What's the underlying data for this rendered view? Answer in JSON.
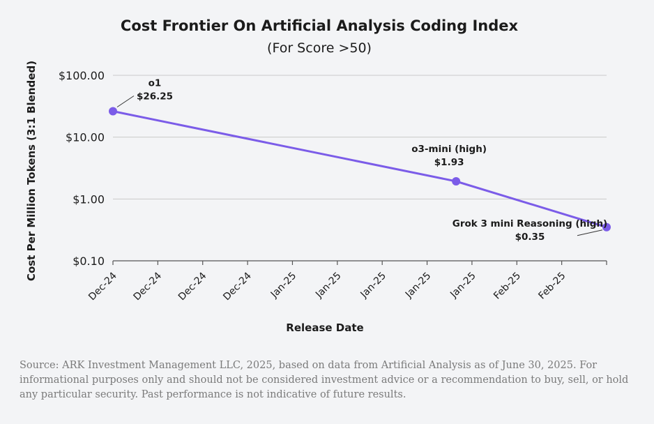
{
  "chart_data": {
    "type": "line",
    "title": "Cost Frontier On Artificial Analysis Coding Index",
    "subtitle": "(For Score >50)",
    "xlabel": "Release Date",
    "ylabel": "Cost Per Million Tokens (3:1 Blended)",
    "yscale": "log",
    "ylim": [
      0.1,
      100
    ],
    "yticks": [
      "$100.00",
      "$10.00",
      "$1.00",
      "$0.10"
    ],
    "ytick_values": [
      100,
      10,
      1,
      0.1
    ],
    "xticks": [
      "Dec-24",
      "Dec-24",
      "Dec-24",
      "Dec-24",
      "Jan-25",
      "Jan-25",
      "Jan-25",
      "Jan-25",
      "Jan-25",
      "Feb-25",
      "Feb-25"
    ],
    "grid": true,
    "color": "#7b5ce8",
    "series": [
      {
        "x": [
          "2024-12-05",
          "2025-01-31",
          "2025-02-25"
        ],
        "values": [
          26.25,
          1.93,
          0.35
        ]
      }
    ],
    "annotations": [
      {
        "name": "o1",
        "value": "$26.25"
      },
      {
        "name": "o3-mini (high)",
        "value": "$1.93"
      },
      {
        "name": "Grok 3 mini Reasoning (high)",
        "value": "$0.35"
      }
    ]
  },
  "footnote": "Source: ARK Investment Management LLC, 2025, based on data from Artificial Analysis as of June 30, 2025. For informational purposes only and should not be considered investment advice or a recommendation to buy, sell, or hold any particular security. Past performance is not indicative of future results."
}
